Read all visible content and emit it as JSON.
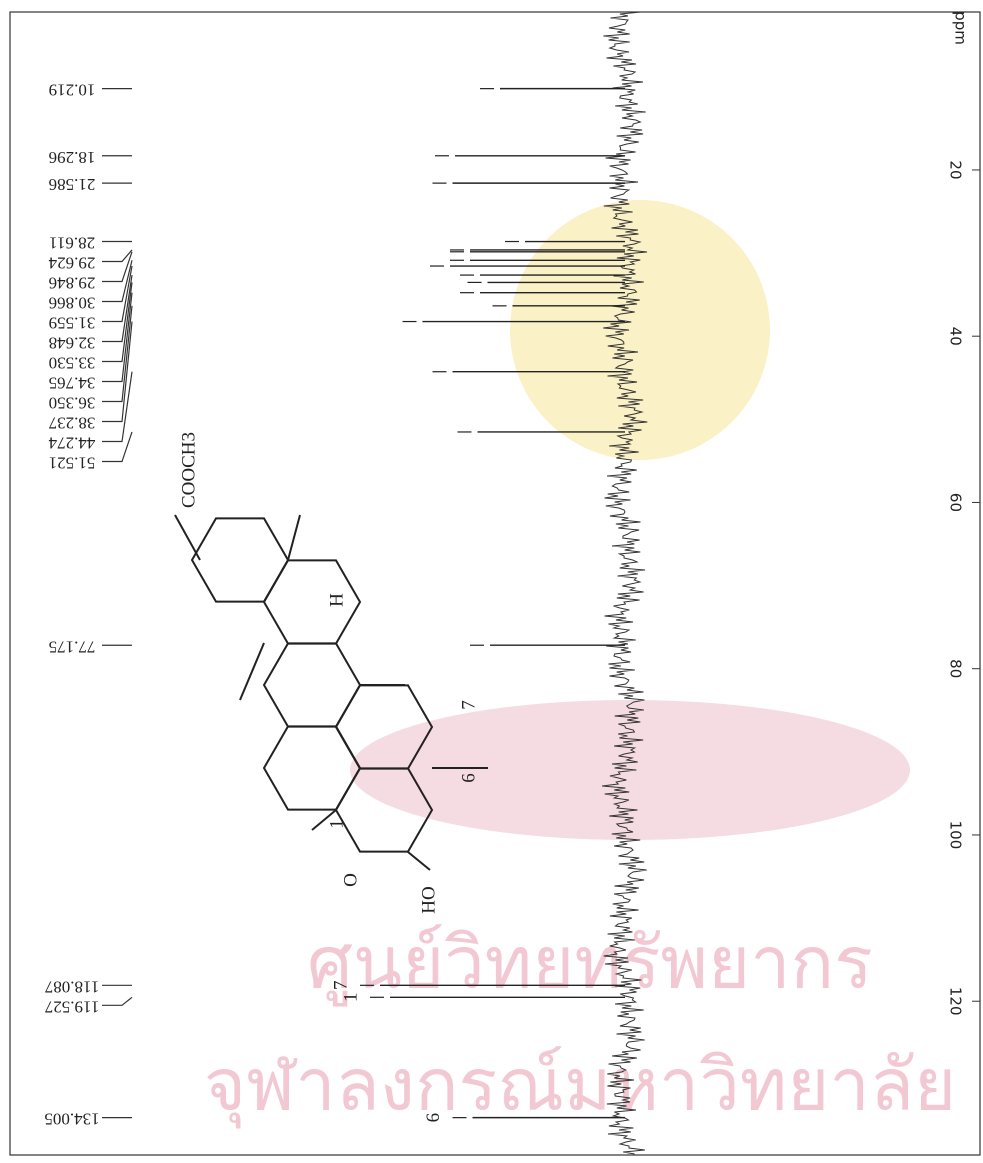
{
  "chart_data": {
    "type": "stick",
    "axis_label": "ppm",
    "values": [
      10.219,
      18.296,
      21.586,
      28.611,
      29.624,
      29.846,
      30.866,
      31.559,
      32.648,
      33.53,
      34.765,
      36.35,
      38.237,
      44.274,
      51.521,
      77.175,
      118.087,
      119.527,
      134.005
    ],
    "value_labels": [
      "10.219",
      "18.296",
      "21.586",
      "28.611",
      "29.624",
      "29.846",
      "30.866",
      "31.559",
      "32.648",
      "33.530",
      "34.765",
      "36.350",
      "38.237",
      "44.274",
      "51.521",
      "77.175",
      "118.087",
      "119.527",
      "134.005"
    ],
    "intensities": [
      50,
      68,
      69,
      40,
      62,
      62,
      62,
      70,
      58,
      55,
      58,
      45,
      81,
      69,
      59,
      54,
      98,
      94,
      61
    ],
    "peak_assignments": [
      null,
      null,
      null,
      null,
      null,
      null,
      null,
      null,
      null,
      null,
      null,
      null,
      null,
      null,
      null,
      null,
      "7",
      "1",
      "6"
    ],
    "ylim": [
      1,
      138.5
    ],
    "yticks": [
      20,
      40,
      60,
      80,
      100,
      120
    ],
    "xlim": [
      0,
      100
    ],
    "color": "#222222"
  },
  "structure": {
    "labels": [
      "COOCH3",
      "H",
      "7",
      "6",
      "1",
      "O",
      "HO"
    ]
  },
  "watermark": [
    "ศูนย์วิทยทรัพยากร",
    "จุฬาลงกรณ์มหาวิทยาลัย"
  ]
}
